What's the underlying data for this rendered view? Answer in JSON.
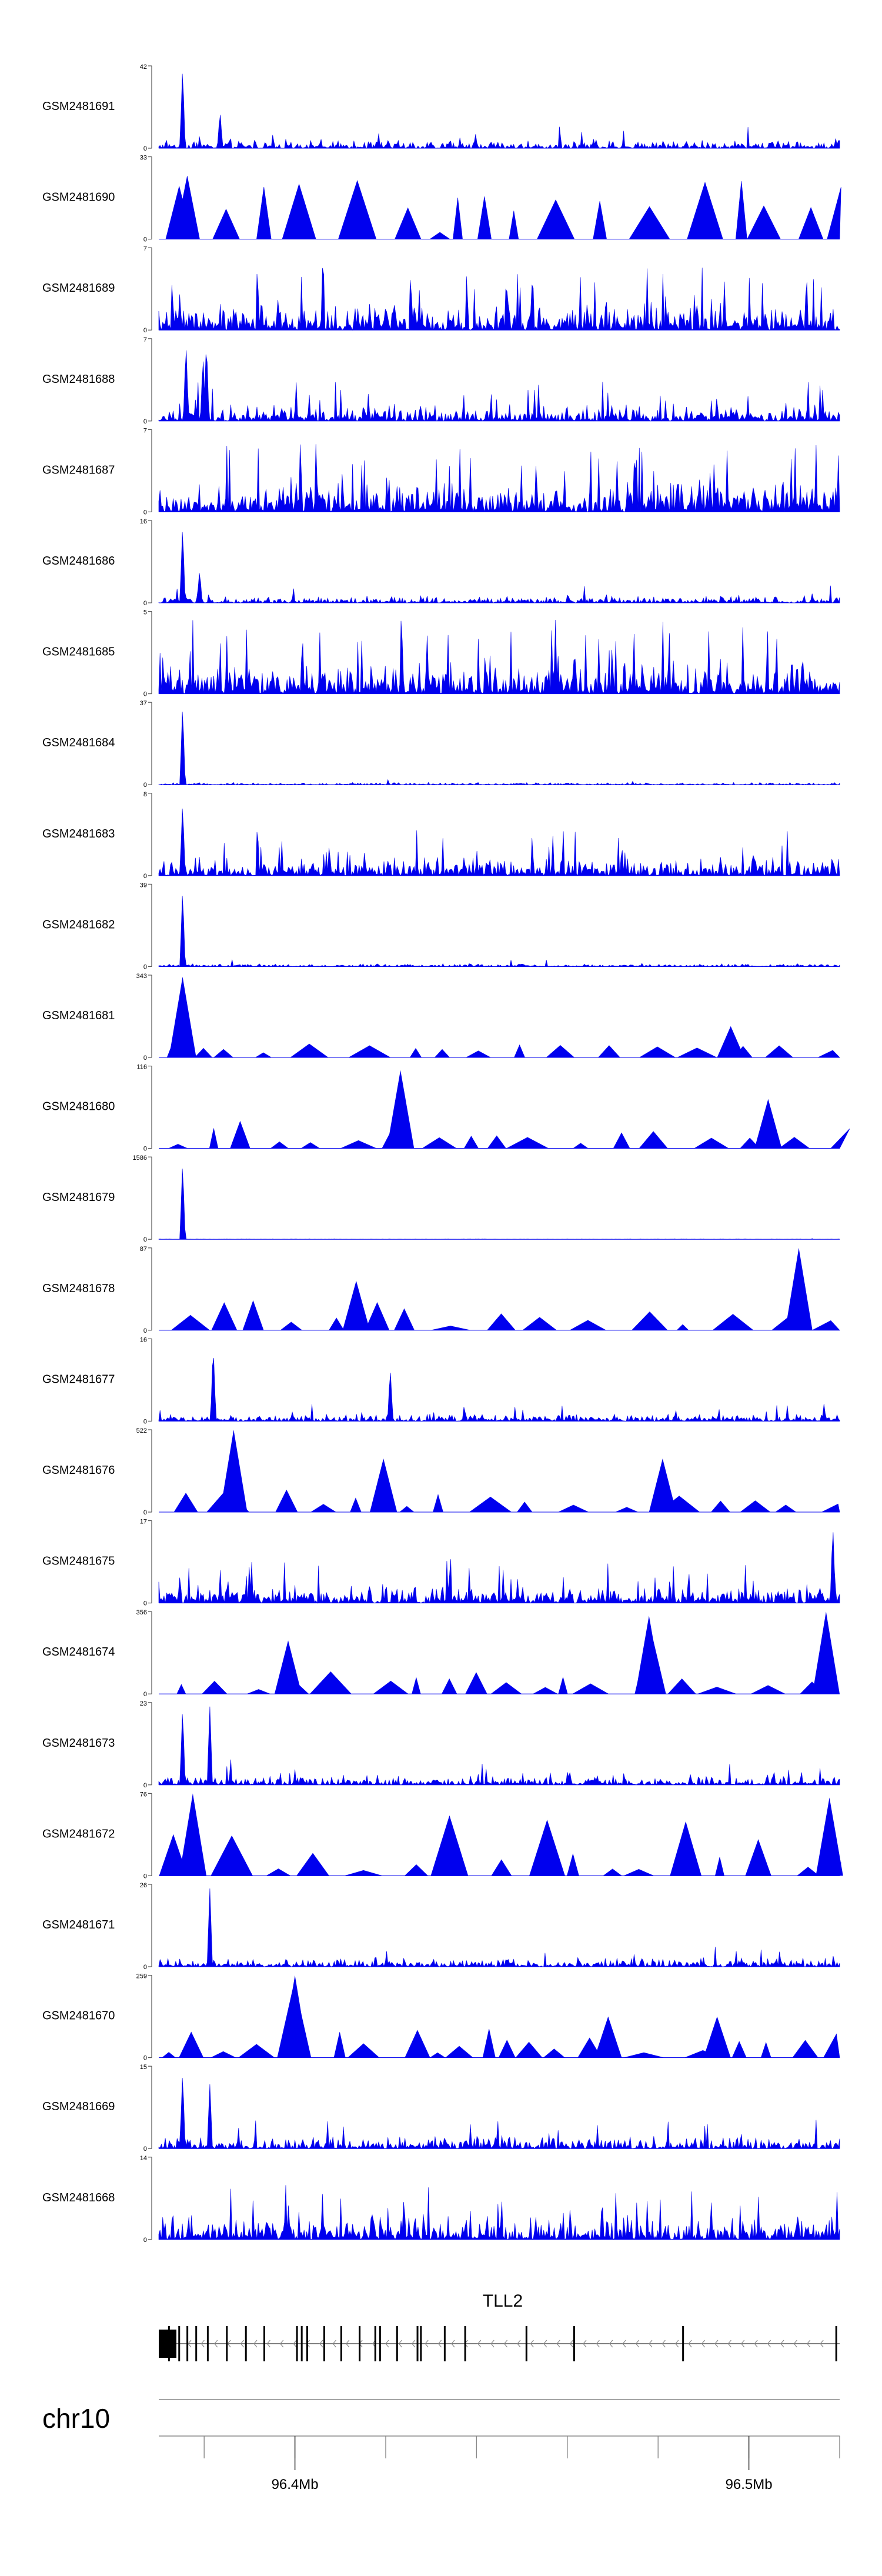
{
  "chart_data": {
    "type": "area",
    "title": "",
    "color": "#0000ee",
    "tracks": [
      {
        "name": "GSM2481691",
        "ymax": "42",
        "style": "dense",
        "density": 0.12,
        "peaks": [
          [
            0.035,
            1.0
          ],
          [
            0.09,
            0.45
          ]
        ]
      },
      {
        "name": "GSM2481690",
        "ymax": "33",
        "style": "sparse",
        "density": 0.75,
        "peaks": [
          [
            0.03,
            0.65
          ]
        ]
      },
      {
        "name": "GSM2481689",
        "ymax": "7",
        "style": "dense",
        "density": 0.35,
        "peaks": []
      },
      {
        "name": "GSM2481688",
        "ymax": "7",
        "style": "dense",
        "density": 0.22,
        "peaks": [
          [
            0.04,
            0.95
          ],
          [
            0.07,
            1.0
          ],
          [
            0.065,
            0.8
          ]
        ]
      },
      {
        "name": "GSM2481687",
        "ymax": "7",
        "style": "dense",
        "density": 0.38,
        "peaks": []
      },
      {
        "name": "GSM2481686",
        "ymax": "16",
        "style": "dense",
        "density": 0.1,
        "peaks": [
          [
            0.035,
            0.95
          ],
          [
            0.06,
            0.4
          ]
        ]
      },
      {
        "name": "GSM2481685",
        "ymax": "5",
        "style": "dense",
        "density": 0.42,
        "peaks": []
      },
      {
        "name": "GSM2481684",
        "ymax": "37",
        "style": "dense",
        "density": 0.03,
        "peaks": [
          [
            0.035,
            0.98
          ]
        ]
      },
      {
        "name": "GSM2481683",
        "ymax": "8",
        "style": "dense",
        "density": 0.25,
        "peaks": [
          [
            0.035,
            0.9
          ]
        ]
      },
      {
        "name": "GSM2481682",
        "ymax": "39",
        "style": "dense",
        "density": 0.04,
        "peaks": [
          [
            0.035,
            0.95
          ]
        ]
      },
      {
        "name": "GSM2481681",
        "ymax": "343",
        "style": "sparse",
        "density": 0.12,
        "peaks": [
          [
            0.035,
            0.98
          ],
          [
            0.84,
            0.38
          ]
        ]
      },
      {
        "name": "GSM2481680",
        "ymax": "116",
        "style": "sparse",
        "density": 0.3,
        "peaks": [
          [
            0.355,
            0.95
          ],
          [
            0.895,
            0.6
          ]
        ]
      },
      {
        "name": "GSM2481679",
        "ymax": "1586",
        "style": "dense",
        "density": 0.006,
        "peaks": [
          [
            0.035,
            0.95
          ]
        ]
      },
      {
        "name": "GSM2481678",
        "ymax": "87",
        "style": "sparse",
        "density": 0.32,
        "peaks": [
          [
            0.94,
            1.0
          ],
          [
            0.29,
            0.6
          ]
        ]
      },
      {
        "name": "GSM2481677",
        "ymax": "16",
        "style": "dense",
        "density": 0.1,
        "peaks": [
          [
            0.08,
            0.95
          ],
          [
            0.34,
            0.65
          ]
        ]
      },
      {
        "name": "GSM2481676",
        "ymax": "522",
        "style": "sparse",
        "density": 0.22,
        "peaks": [
          [
            0.11,
            1.0
          ],
          [
            0.33,
            0.65
          ],
          [
            0.74,
            0.65
          ]
        ]
      },
      {
        "name": "GSM2481675",
        "ymax": "17",
        "style": "dense",
        "density": 0.25,
        "peaks": [
          [
            0.99,
            0.95
          ]
        ]
      },
      {
        "name": "GSM2481674",
        "ymax": "356",
        "style": "sparse",
        "density": 0.28,
        "peaks": [
          [
            0.19,
            0.65
          ],
          [
            0.72,
            0.95
          ],
          [
            0.98,
            1.0
          ]
        ]
      },
      {
        "name": "GSM2481673",
        "ymax": "23",
        "style": "dense",
        "density": 0.14,
        "peaks": [
          [
            0.035,
            0.95
          ],
          [
            0.075,
            0.95
          ]
        ]
      },
      {
        "name": "GSM2481672",
        "ymax": "76",
        "style": "sparse",
        "density": 0.7,
        "peaks": [
          [
            0.05,
            1.0
          ],
          [
            0.985,
            0.95
          ]
        ]
      },
      {
        "name": "GSM2481671",
        "ymax": "26",
        "style": "dense",
        "density": 0.12,
        "peaks": [
          [
            0.075,
            0.95
          ]
        ]
      },
      {
        "name": "GSM2481670",
        "ymax": "259",
        "style": "sparse",
        "density": 0.3,
        "peaks": [
          [
            0.2,
            1.0
          ],
          [
            0.66,
            0.5
          ],
          [
            0.82,
            0.5
          ]
        ]
      },
      {
        "name": "GSM2481669",
        "ymax": "15",
        "style": "dense",
        "density": 0.16,
        "peaks": [
          [
            0.035,
            0.95
          ],
          [
            0.075,
            0.78
          ]
        ]
      },
      {
        "name": "GSM2481668",
        "ymax": "14",
        "style": "dense",
        "density": 0.3,
        "peaks": []
      }
    ],
    "yzero": "0",
    "gene": {
      "name": "TLL2",
      "exons": [
        0.015,
        0.03,
        0.042,
        0.055,
        0.072,
        0.1,
        0.128,
        0.155,
        0.203,
        0.21,
        0.218,
        0.243,
        0.268,
        0.295,
        0.318,
        0.325,
        0.35,
        0.38,
        0.385,
        0.42,
        0.45,
        0.54,
        0.61,
        0.77,
        0.995
      ]
    },
    "chromosome": "chr10",
    "axis": {
      "range_mb": [
        96.37,
        96.52
      ],
      "ticks": [
        {
          "pos": 96.4,
          "label": "96.4Mb"
        },
        {
          "pos": 96.5,
          "label": "96.5Mb"
        }
      ],
      "minor_step_mb": 0.02
    }
  }
}
